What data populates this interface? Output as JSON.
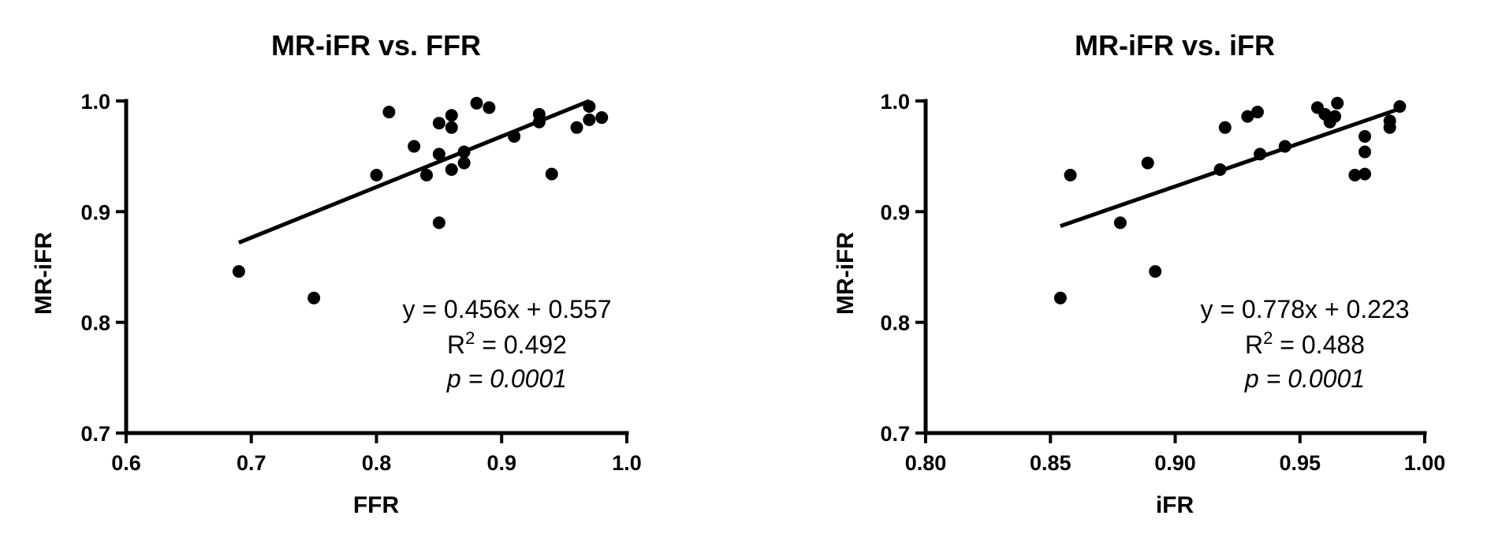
{
  "chart_data": [
    {
      "type": "scatter",
      "title": "MR-iFR vs. FFR",
      "x_label": "FFR",
      "y_label": "MR-iFR",
      "color": "#000000",
      "x": [
        0.69,
        0.75,
        0.8,
        0.81,
        0.83,
        0.84,
        0.85,
        0.85,
        0.85,
        0.86,
        0.86,
        0.86,
        0.87,
        0.87,
        0.88,
        0.89,
        0.91,
        0.93,
        0.93,
        0.94,
        0.96,
        0.97,
        0.97,
        0.98
      ],
      "y": [
        0.846,
        0.822,
        0.933,
        0.99,
        0.959,
        0.933,
        0.98,
        0.952,
        0.89,
        0.987,
        0.976,
        0.938,
        0.954,
        0.944,
        0.998,
        0.994,
        0.968,
        0.988,
        0.981,
        0.934,
        0.976,
        0.995,
        0.983,
        0.985
      ],
      "xlim": [
        0.6,
        1.0
      ],
      "ylim": [
        0.7,
        1.0
      ],
      "xticks": [
        0.6,
        0.7,
        0.8,
        0.9,
        {
          "value": 1.0,
          "label": "1.0"
        }
      ],
      "yticks": [
        0.7,
        0.8,
        0.9,
        {
          "value": 1.0,
          "label": "1.0"
        }
      ],
      "fit_line": {
        "x": [
          0.69,
          0.97
        ],
        "y": [
          0.872,
          1.0
        ]
      },
      "annotations": {
        "equation": "y = 0.456x + 0.557",
        "r2_label": "R",
        "r2_sup": "2",
        "r2_value": " = 0.492",
        "p_value": "p = 0.0001"
      }
    },
    {
      "type": "scatter",
      "title": "MR-iFR vs. iFR",
      "x_label": "iFR",
      "y_label": "MR-iFR",
      "color": "#000000",
      "x": [
        0.854,
        0.858,
        0.878,
        0.889,
        0.892,
        0.918,
        0.92,
        0.929,
        0.933,
        0.934,
        0.944,
        0.957,
        0.96,
        0.962,
        0.964,
        0.965,
        0.972,
        0.976,
        0.976,
        0.976,
        0.986,
        0.986,
        0.99
      ],
      "y": [
        0.822,
        0.933,
        0.89,
        0.944,
        0.846,
        0.938,
        0.976,
        0.986,
        0.99,
        0.952,
        0.959,
        0.994,
        0.988,
        0.981,
        0.986,
        0.998,
        0.933,
        0.968,
        0.954,
        0.934,
        0.976,
        0.982,
        0.995
      ],
      "xlim": [
        0.8,
        1.0
      ],
      "ylim": [
        0.7,
        1.0
      ],
      "xticks": [
        {
          "value": 0.8,
          "label": "0.80"
        },
        {
          "value": 0.85,
          "label": "0.85"
        },
        {
          "value": 0.9,
          "label": "0.90"
        },
        {
          "value": 0.95,
          "label": "0.95"
        },
        {
          "value": 1.0,
          "label": "1.00"
        }
      ],
      "yticks": [
        0.7,
        0.8,
        0.9,
        {
          "value": 1.0,
          "label": "1.0"
        }
      ],
      "fit_line": {
        "x": [
          0.854,
          0.99
        ],
        "y": [
          0.887,
          0.993
        ]
      },
      "annotations": {
        "equation": "y = 0.778x + 0.223",
        "r2_label": "R",
        "r2_sup": "2",
        "r2_value": " = 0.488",
        "p_value": "p = 0.0001"
      }
    }
  ]
}
